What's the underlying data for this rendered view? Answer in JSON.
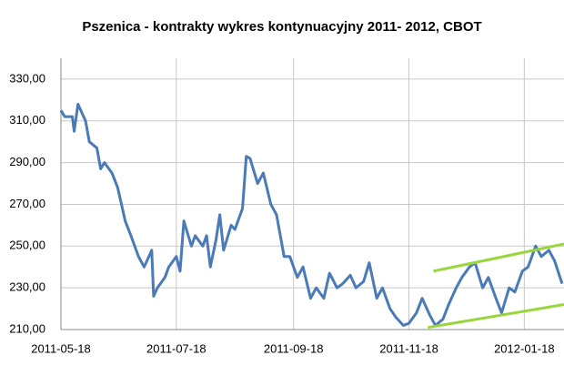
{
  "chart_data": {
    "type": "line",
    "title": "Pszenica - kontrakty wykres kontynuacyjny 2011-  2012, CBOT",
    "x": [
      "2011-05-18",
      "2011-05-20",
      "2011-05-24",
      "2011-05-25",
      "2011-05-27",
      "2011-05-31",
      "2011-06-02",
      "2011-06-06",
      "2011-06-08",
      "2011-06-10",
      "2011-06-14",
      "2011-06-17",
      "2011-06-21",
      "2011-06-24",
      "2011-06-28",
      "2011-07-01",
      "2011-07-05",
      "2011-07-06",
      "2011-07-08",
      "2011-07-12",
      "2011-07-14",
      "2011-07-18",
      "2011-07-20",
      "2011-07-22",
      "2011-07-26",
      "2011-07-28",
      "2011-08-01",
      "2011-08-03",
      "2011-08-05",
      "2011-08-08",
      "2011-08-10",
      "2011-08-12",
      "2011-08-16",
      "2011-08-18",
      "2011-08-22",
      "2011-08-24",
      "2011-08-26",
      "2011-08-30",
      "2011-09-02",
      "2011-09-06",
      "2011-09-09",
      "2011-09-13",
      "2011-09-16",
      "2011-09-20",
      "2011-09-23",
      "2011-09-27",
      "2011-09-30",
      "2011-10-04",
      "2011-10-07",
      "2011-10-11",
      "2011-10-14",
      "2011-10-18",
      "2011-10-21",
      "2011-10-25",
      "2011-10-28",
      "2011-11-01",
      "2011-11-04",
      "2011-11-08",
      "2011-11-11",
      "2011-11-15",
      "2011-11-18",
      "2011-11-22",
      "2011-11-25",
      "2011-11-29",
      "2011-12-02",
      "2011-12-06",
      "2011-12-09",
      "2011-12-13",
      "2011-12-16",
      "2011-12-20",
      "2011-12-23",
      "2011-12-27",
      "2011-12-30",
      "2012-01-03",
      "2012-01-06",
      "2012-01-10",
      "2012-01-13",
      "2012-01-17",
      "2012-01-20",
      "2012-01-24",
      "2012-01-27",
      "2012-01-31",
      "2012-02-03",
      "2012-02-07"
    ],
    "series": [
      {
        "color": "#4a7ab8",
        "values": [
          315,
          312,
          312,
          305,
          318,
          310,
          300,
          297,
          287,
          290,
          285,
          278,
          262,
          255,
          245,
          240,
          248,
          226,
          230,
          235,
          240,
          245,
          238,
          262,
          250,
          255,
          250,
          255,
          240,
          253,
          265,
          248,
          260,
          258,
          268,
          293,
          292,
          280,
          285,
          270,
          265,
          245,
          245,
          235,
          240,
          225,
          230,
          225,
          237,
          230,
          232,
          236,
          230,
          233,
          242,
          225,
          230,
          220,
          216,
          212,
          213,
          218,
          225,
          217,
          212,
          215,
          222,
          230,
          235,
          240,
          242,
          230,
          235,
          225,
          218,
          230,
          228,
          238,
          240,
          250,
          245,
          248,
          243,
          232
        ]
      }
    ],
    "trend_lines": [
      {
        "color": "#99d63a",
        "x": [
          "2011-12-01",
          "2012-02-08"
        ],
        "values": [
          238,
          251
        ]
      },
      {
        "color": "#99d63a",
        "x": [
          "2011-11-28",
          "2012-02-08"
        ],
        "values": [
          211,
          222
        ]
      }
    ],
    "xlim": [
      "2011-05-18",
      "2012-02-08"
    ],
    "xticks": [
      "2011-05-18",
      "2011-07-18",
      "2011-09-18",
      "2011-11-18",
      "2012-01-18"
    ],
    "ylim": [
      210,
      340
    ],
    "yticks": [
      {
        "value": 210,
        "label": "210,00"
      },
      {
        "value": 230,
        "label": "230,00"
      },
      {
        "value": 250,
        "label": "250,00"
      },
      {
        "value": 270,
        "label": "270,00"
      },
      {
        "value": 290,
        "label": "290,00"
      },
      {
        "value": 310,
        "label": "310,00"
      },
      {
        "value": 330,
        "label": "330,00"
      }
    ],
    "grid": true
  }
}
